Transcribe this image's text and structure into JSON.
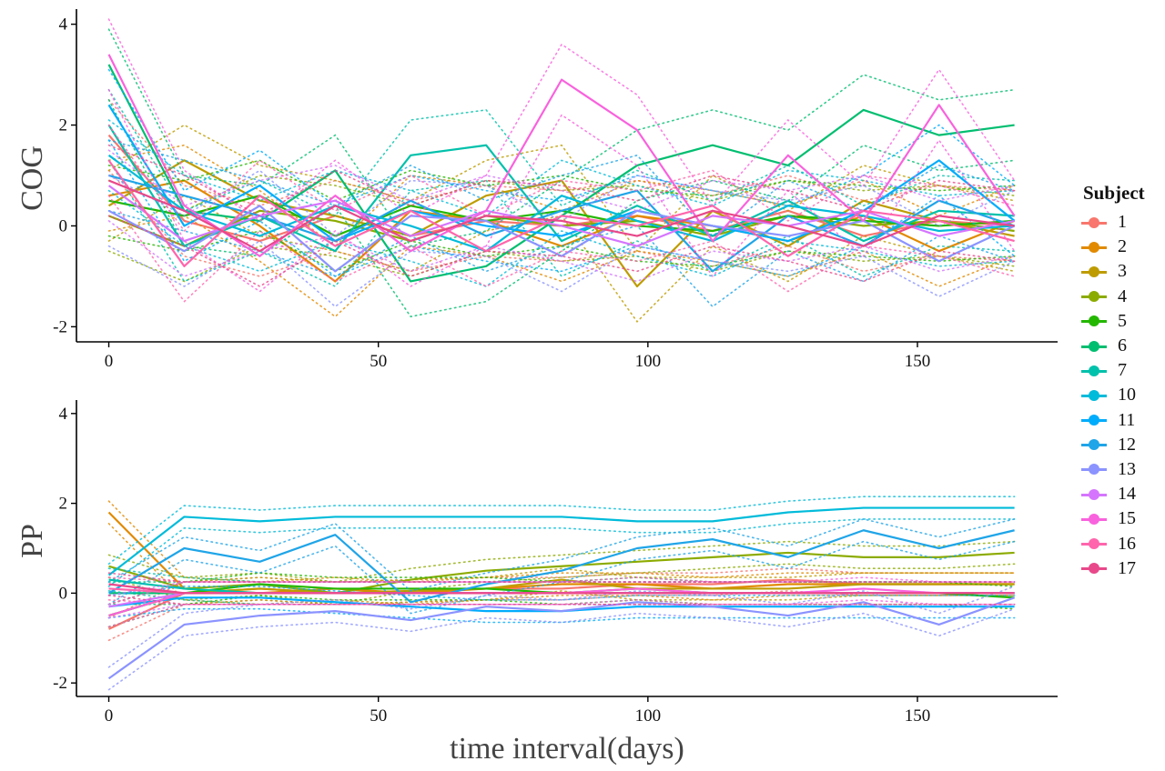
{
  "chart_data": [
    {
      "type": "line",
      "panel": "top",
      "ylabel": "COG",
      "xlabel": "",
      "xlim": [
        -6,
        176
      ],
      "ylim": [
        -2.3,
        4.3
      ],
      "xticks": [
        0,
        50,
        100,
        150
      ],
      "yticks": [
        -2,
        0,
        2,
        4
      ],
      "x": [
        0,
        14,
        28,
        42,
        56,
        70,
        84,
        98,
        112,
        126,
        140,
        154,
        168
      ],
      "grid": false,
      "series": [
        {
          "name": "1",
          "values": [
            1.8,
            0.1,
            -0.3,
            0.2,
            -0.2,
            0.1,
            0.0,
            0.2,
            -0.1,
            0.3,
            -0.2,
            0.1,
            0.0
          ]
        },
        {
          "name": "2",
          "values": [
            0.6,
            0.9,
            0.0,
            -1.1,
            0.3,
            0.1,
            -0.4,
            0.2,
            0.0,
            -0.3,
            0.2,
            -0.5,
            0.1
          ]
        },
        {
          "name": "3",
          "values": [
            0.4,
            1.3,
            0.5,
            0.2,
            -0.2,
            0.6,
            0.9,
            -1.2,
            0.3,
            -0.4,
            0.5,
            0.1,
            -0.2
          ]
        },
        {
          "name": "4",
          "values": [
            0.2,
            -0.4,
            0.3,
            0.1,
            -0.3,
            0.2,
            0.0,
            0.1,
            -0.2,
            0.2,
            0.0,
            0.1,
            -0.1
          ]
        },
        {
          "name": "5",
          "values": [
            0.5,
            0.2,
            0.6,
            -0.2,
            0.4,
            0.1,
            0.3,
            0.0,
            -0.1,
            0.2,
            0.1,
            0.0,
            0.1
          ]
        },
        {
          "name": "6",
          "values": [
            3.2,
            0.3,
            0.1,
            1.1,
            -1.1,
            -0.8,
            0.2,
            1.2,
            1.6,
            1.2,
            2.3,
            1.8,
            2.0
          ]
        },
        {
          "name": "7",
          "values": [
            2.0,
            -0.4,
            0.2,
            -0.5,
            1.4,
            1.6,
            -0.3,
            0.4,
            -0.2,
            0.5,
            -0.3,
            0.3,
            0.2
          ]
        },
        {
          "name": "10",
          "values": [
            1.4,
            0.3,
            -0.2,
            0.4,
            0.0,
            -0.5,
            0.6,
            0.1,
            -0.3,
            0.4,
            0.2,
            -0.1,
            0.0
          ]
        },
        {
          "name": "11",
          "values": [
            2.4,
            0.0,
            0.8,
            -0.3,
            0.3,
            0.0,
            -0.2,
            0.3,
            0.0,
            -0.3,
            0.3,
            1.3,
            0.1
          ]
        },
        {
          "name": "12",
          "values": [
            1.0,
            0.6,
            0.2,
            -0.3,
            0.5,
            -0.2,
            0.3,
            0.7,
            -0.9,
            0.2,
            -0.4,
            0.5,
            0.0
          ]
        },
        {
          "name": "13",
          "values": [
            0.3,
            -0.5,
            0.4,
            -0.9,
            0.2,
            0.1,
            -0.6,
            0.3,
            0.0,
            -0.2,
            0.1,
            -0.7,
            0.0
          ]
        },
        {
          "name": "14",
          "values": [
            0.8,
            -0.3,
            0.2,
            0.5,
            -0.2,
            0.3,
            0.0,
            -0.4,
            0.2,
            0.0,
            0.3,
            -0.2,
            0.1
          ]
        },
        {
          "name": "15",
          "values": [
            3.4,
            0.4,
            -0.6,
            0.6,
            -0.5,
            0.3,
            2.9,
            1.9,
            -0.3,
            1.4,
            0.1,
            2.4,
            0.2
          ]
        },
        {
          "name": "16",
          "values": [
            1.3,
            -0.8,
            0.6,
            -0.4,
            0.3,
            -0.5,
            0.2,
            0.0,
            0.4,
            -0.6,
            0.3,
            0.1,
            -0.3
          ]
        },
        {
          "name": "17",
          "values": [
            0.9,
            0.3,
            -0.5,
            0.4,
            -0.3,
            0.2,
            0.1,
            -0.2,
            0.3,
            0.0,
            -0.4,
            0.2,
            0.0
          ]
        }
      ]
    },
    {
      "type": "line",
      "panel": "bottom",
      "ylabel": "PP",
      "xlabel": "time interval(days)",
      "xlim": [
        -6,
        176
      ],
      "ylim": [
        -2.3,
        4.3
      ],
      "xticks": [
        0,
        50,
        100,
        150
      ],
      "yticks": [
        -2,
        0,
        2,
        4
      ],
      "x": [
        0,
        14,
        28,
        42,
        56,
        70,
        84,
        98,
        112,
        126,
        140,
        154,
        168
      ],
      "grid": false,
      "series": [
        {
          "name": "1",
          "values": [
            -0.8,
            0.0,
            0.1,
            0.0,
            0.05,
            0.1,
            0.1,
            0.2,
            0.2,
            0.3,
            0.2,
            0.2,
            0.2
          ]
        },
        {
          "name": "2",
          "values": [
            1.8,
            0.1,
            0.0,
            0.1,
            0.0,
            0.1,
            0.2,
            0.2,
            0.1,
            0.2,
            0.2,
            0.2,
            0.2
          ]
        },
        {
          "name": "3",
          "values": [
            -0.5,
            0.0,
            0.1,
            0.0,
            0.05,
            0.1,
            0.3,
            0.1,
            0.1,
            0.1,
            0.2,
            0.2,
            0.2
          ]
        },
        {
          "name": "4",
          "values": [
            0.6,
            0.1,
            0.2,
            0.0,
            0.3,
            0.5,
            0.6,
            0.7,
            0.8,
            0.9,
            0.8,
            0.8,
            0.9
          ]
        },
        {
          "name": "5",
          "values": [
            -0.5,
            0.0,
            0.2,
            0.1,
            0.1,
            0.1,
            0.0,
            0.1,
            0.0,
            0.0,
            0.0,
            0.0,
            -0.1
          ]
        },
        {
          "name": "6",
          "values": [
            0.0,
            0.0,
            0.0,
            0.0,
            0.0,
            0.0,
            0.0,
            0.0,
            0.0,
            0.0,
            0.0,
            0.0,
            0.0
          ]
        },
        {
          "name": "7",
          "values": [
            0.3,
            0.1,
            0.0,
            0.0,
            0.0,
            0.0,
            0.0,
            0.0,
            0.0,
            0.0,
            0.0,
            0.0,
            0.0
          ]
        },
        {
          "name": "10",
          "values": [
            0.4,
            1.7,
            1.6,
            1.7,
            1.7,
            1.7,
            1.7,
            1.6,
            1.6,
            1.8,
            1.9,
            1.9,
            1.9
          ]
        },
        {
          "name": "11",
          "values": [
            -0.3,
            -0.1,
            -0.1,
            -0.2,
            -0.3,
            -0.4,
            -0.4,
            -0.3,
            -0.3,
            -0.3,
            -0.3,
            -0.3,
            -0.3
          ]
        },
        {
          "name": "12",
          "values": [
            0.0,
            1.0,
            0.7,
            1.3,
            -0.2,
            0.2,
            0.5,
            1.0,
            1.2,
            0.8,
            1.4,
            1.0,
            1.4
          ]
        },
        {
          "name": "13",
          "values": [
            -1.9,
            -0.7,
            -0.5,
            -0.4,
            -0.6,
            -0.3,
            -0.4,
            -0.2,
            -0.3,
            -0.5,
            -0.2,
            -0.7,
            -0.1
          ]
        },
        {
          "name": "14",
          "values": [
            -0.3,
            0.0,
            0.0,
            0.0,
            0.0,
            0.0,
            0.0,
            0.0,
            0.0,
            0.0,
            0.0,
            0.0,
            0.0
          ]
        },
        {
          "name": "15",
          "values": [
            -0.5,
            0.0,
            0.0,
            0.0,
            0.0,
            0.0,
            0.0,
            0.1,
            0.0,
            0.0,
            0.1,
            0.0,
            0.0
          ]
        },
        {
          "name": "16",
          "values": [
            0.1,
            0.0,
            0.0,
            0.0,
            0.0,
            0.0,
            0.0,
            0.0,
            0.0,
            0.0,
            0.0,
            0.0,
            0.0
          ]
        },
        {
          "name": "17",
          "values": [
            0.2,
            0.0,
            0.0,
            0.0,
            0.0,
            0.0,
            0.0,
            0.0,
            0.0,
            0.0,
            0.0,
            0.0,
            0.0
          ]
        }
      ]
    }
  ],
  "legend": {
    "title": "Subject",
    "position": "right",
    "entries": [
      {
        "label": "1",
        "color": "#F8766D"
      },
      {
        "label": "2",
        "color": "#E18A00"
      },
      {
        "label": "3",
        "color": "#BE9C00"
      },
      {
        "label": "4",
        "color": "#8CAB00"
      },
      {
        "label": "5",
        "color": "#24B700"
      },
      {
        "label": "6",
        "color": "#00BE70"
      },
      {
        "label": "7",
        "color": "#00C1AB"
      },
      {
        "label": "10",
        "color": "#00BBDA"
      },
      {
        "label": "11",
        "color": "#00ACFC"
      },
      {
        "label": "12",
        "color": "#1FA5E8"
      },
      {
        "label": "13",
        "color": "#8B93FF"
      },
      {
        "label": "14",
        "color": "#D575FE"
      },
      {
        "label": "15",
        "color": "#F962DD"
      },
      {
        "label": "16",
        "color": "#FF65AC"
      },
      {
        "label": "17",
        "color": "#E8488A"
      }
    ]
  }
}
